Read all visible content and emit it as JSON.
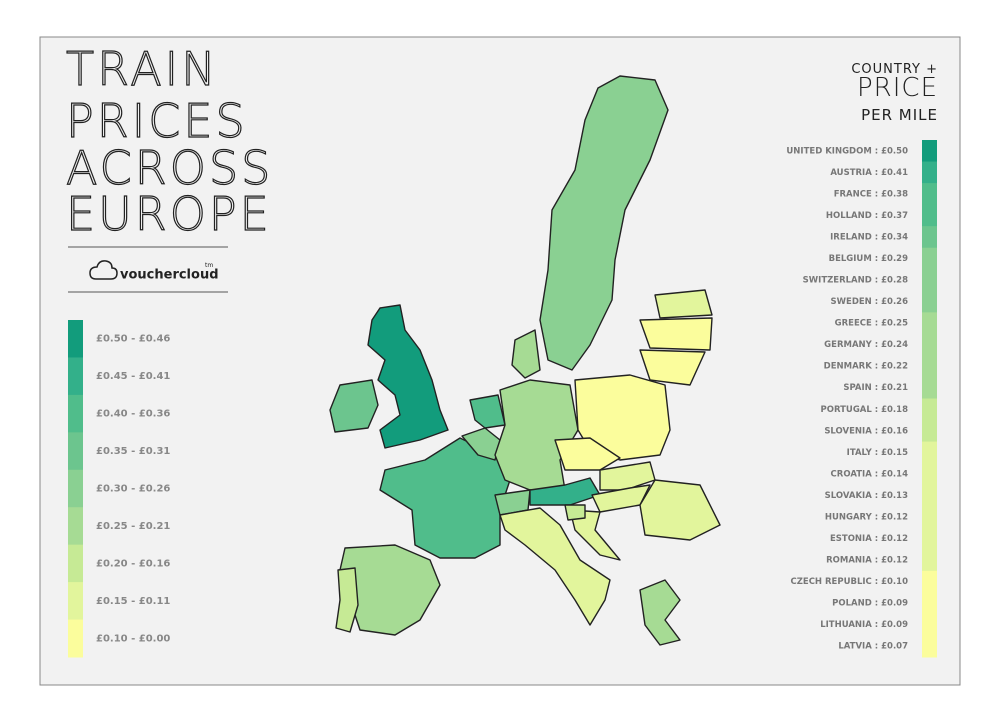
{
  "title": {
    "lines": [
      "TRAIN",
      "PRICES",
      "ACROSS",
      "EUROPE"
    ]
  },
  "brand": {
    "name": "vouchercloud",
    "mark": "tm"
  },
  "legend": {
    "bins": [
      {
        "label": "£0.50 - £0.46",
        "color": "#129c7c"
      },
      {
        "label": "£0.45 - £0.41",
        "color": "#33b08a"
      },
      {
        "label": "£0.40 - £0.36",
        "color": "#50bd8b"
      },
      {
        "label": "£0.35 - £0.31",
        "color": "#6cc58e"
      },
      {
        "label": "£0.30 - £0.26",
        "color": "#8ad092"
      },
      {
        "label": "£0.25 - £0.21",
        "color": "#a6db94"
      },
      {
        "label": "£0.20 - £0.16",
        "color": "#c6ea95"
      },
      {
        "label": "£0.15 - £0.11",
        "color": "#e2f59c"
      },
      {
        "label": "£0.10 - £0.00",
        "color": "#fbfd9c"
      }
    ]
  },
  "ranking": {
    "heading": [
      "COUNTRY +",
      "PRICE",
      "PER MILE"
    ],
    "rows": [
      {
        "label": "UNITED KINGDOM : £0.50",
        "color": "#129c7c"
      },
      {
        "label": "AUSTRIA : £0.41",
        "color": "#33b08a"
      },
      {
        "label": "FRANCE : £0.38",
        "color": "#50bd8b"
      },
      {
        "label": "HOLLAND : £0.37",
        "color": "#50bd8b"
      },
      {
        "label": "IRELAND : £0.34",
        "color": "#6cc58e"
      },
      {
        "label": "BELGIUM : £0.29",
        "color": "#8ad092"
      },
      {
        "label": "SWITZERLAND : £0.28",
        "color": "#8ad092"
      },
      {
        "label": "SWEDEN : £0.26",
        "color": "#8ad092"
      },
      {
        "label": "GREECE : £0.25",
        "color": "#a6db94"
      },
      {
        "label": "GERMANY : £0.24",
        "color": "#a6db94"
      },
      {
        "label": "DENMARK : £0.22",
        "color": "#a6db94"
      },
      {
        "label": "SPAIN : £0.21",
        "color": "#a6db94"
      },
      {
        "label": "PORTUGAL : £0.18",
        "color": "#c6ea95"
      },
      {
        "label": "SLOVENIA : £0.16",
        "color": "#c6ea95"
      },
      {
        "label": "ITALY : £0.15",
        "color": "#e2f59c"
      },
      {
        "label": "CROATIA : £0.14",
        "color": "#e2f59c"
      },
      {
        "label": "SLOVAKIA : £0.13",
        "color": "#e2f59c"
      },
      {
        "label": "HUNGARY : £0.12",
        "color": "#e2f59c"
      },
      {
        "label": "ESTONIA : £0.12",
        "color": "#e2f59c"
      },
      {
        "label": "ROMANIA : £0.12",
        "color": "#e2f59c"
      },
      {
        "label": "CZECH REPUBLIC : £0.10",
        "color": "#fbfd9c"
      },
      {
        "label": "POLAND : £0.09",
        "color": "#fbfd9c"
      },
      {
        "label": "LITHUANIA : £0.09",
        "color": "#fbfd9c"
      },
      {
        "label": "LATVIA : £0.07",
        "color": "#fbfd9c"
      }
    ]
  }
}
